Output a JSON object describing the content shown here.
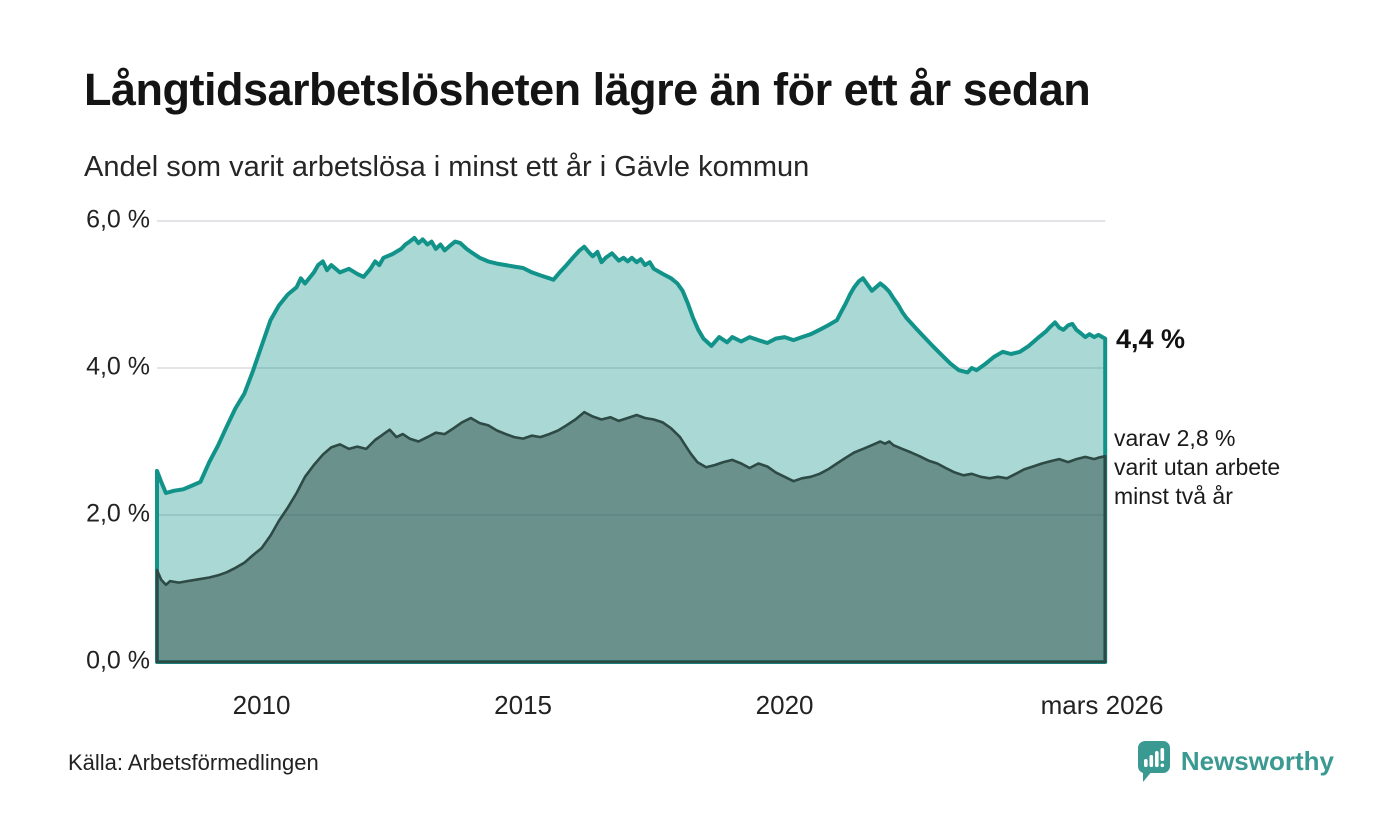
{
  "header": {
    "title": "Långtidsarbetslösheten lägre än för ett år sedan",
    "subtitle": "Andel som varit arbetslösa i minst ett år i Gävle kommun"
  },
  "annotation": {
    "value_label": "4,4 %",
    "note_lines": [
      "varav 2,8 %",
      "varit utan arbete",
      "minst två år"
    ]
  },
  "footer": {
    "source_label": "Källa: Arbetsförmedlingen",
    "brand": "Newsworthy"
  },
  "colors": {
    "grid": "#e3e3e8",
    "teal_line": "#12938a",
    "teal_fill": "rgba(18,147,138,0.36)",
    "dark_line": "#2d4a45",
    "dark_fill": "rgba(45,74,69,0.5)",
    "brand_teal": "#3a9a92",
    "text": "#1a1a1a"
  },
  "chart_data": {
    "type": "area",
    "title": "Långtidsarbetslösheten lägre än för ett år sedan",
    "subtitle": "Andel som varit arbetslösa i minst ett år i Gävle kommun",
    "unit": "%",
    "x_domain": [
      "jan 2008",
      "mars 2026"
    ],
    "ylim": [
      0,
      6
    ],
    "grid": true,
    "legend_position": "none",
    "yticks": [
      {
        "value": 6,
        "label": "6,0 %"
      },
      {
        "value": 4,
        "label": "4,0 %"
      },
      {
        "value": 2,
        "label": "2,0 %"
      },
      {
        "value": 0,
        "label": "0,0 %"
      }
    ],
    "xticks": [
      {
        "year": 2010.0,
        "label": "2010"
      },
      {
        "year": 2015.0,
        "label": "2015"
      },
      {
        "year": 2020.0,
        "label": "2020"
      },
      {
        "year": 2026.07,
        "label": "mars 2026"
      }
    ],
    "end_labels": {
      "series_1": "4,4 %",
      "series_2": "2,8 %"
    },
    "series": [
      {
        "name": "Arbetslösa minst ett år",
        "latest_value": 4.4,
        "points": [
          [
            2008.0,
            2.6
          ],
          [
            2008.08,
            2.45
          ],
          [
            2008.17,
            2.3
          ],
          [
            2008.33,
            2.33
          ],
          [
            2008.5,
            2.35
          ],
          [
            2008.67,
            2.4
          ],
          [
            2008.83,
            2.45
          ],
          [
            2009.0,
            2.72
          ],
          [
            2009.17,
            2.95
          ],
          [
            2009.33,
            3.2
          ],
          [
            2009.5,
            3.45
          ],
          [
            2009.67,
            3.65
          ],
          [
            2009.83,
            3.95
          ],
          [
            2010.0,
            4.3
          ],
          [
            2010.17,
            4.65
          ],
          [
            2010.33,
            4.85
          ],
          [
            2010.5,
            5.0
          ],
          [
            2010.67,
            5.1
          ],
          [
            2010.75,
            5.22
          ],
          [
            2010.83,
            5.15
          ],
          [
            2011.0,
            5.3
          ],
          [
            2011.08,
            5.4
          ],
          [
            2011.17,
            5.45
          ],
          [
            2011.25,
            5.33
          ],
          [
            2011.33,
            5.4
          ],
          [
            2011.5,
            5.3
          ],
          [
            2011.67,
            5.35
          ],
          [
            2011.83,
            5.28
          ],
          [
            2011.95,
            5.24
          ],
          [
            2012.08,
            5.35
          ],
          [
            2012.17,
            5.45
          ],
          [
            2012.25,
            5.4
          ],
          [
            2012.33,
            5.5
          ],
          [
            2012.5,
            5.55
          ],
          [
            2012.67,
            5.62
          ],
          [
            2012.75,
            5.68
          ],
          [
            2012.83,
            5.72
          ],
          [
            2012.92,
            5.77
          ],
          [
            2013.0,
            5.7
          ],
          [
            2013.08,
            5.75
          ],
          [
            2013.17,
            5.68
          ],
          [
            2013.25,
            5.72
          ],
          [
            2013.33,
            5.62
          ],
          [
            2013.42,
            5.68
          ],
          [
            2013.5,
            5.6
          ],
          [
            2013.58,
            5.65
          ],
          [
            2013.7,
            5.72
          ],
          [
            2013.8,
            5.7
          ],
          [
            2013.92,
            5.62
          ],
          [
            2014.0,
            5.58
          ],
          [
            2014.17,
            5.5
          ],
          [
            2014.33,
            5.45
          ],
          [
            2014.5,
            5.42
          ],
          [
            2014.67,
            5.4
          ],
          [
            2014.83,
            5.38
          ],
          [
            2015.0,
            5.36
          ],
          [
            2015.17,
            5.3
          ],
          [
            2015.33,
            5.26
          ],
          [
            2015.5,
            5.22
          ],
          [
            2015.58,
            5.2
          ],
          [
            2015.7,
            5.3
          ],
          [
            2015.83,
            5.4
          ],
          [
            2015.95,
            5.5
          ],
          [
            2016.08,
            5.6
          ],
          [
            2016.17,
            5.65
          ],
          [
            2016.25,
            5.58
          ],
          [
            2016.33,
            5.52
          ],
          [
            2016.42,
            5.58
          ],
          [
            2016.5,
            5.44
          ],
          [
            2016.58,
            5.5
          ],
          [
            2016.7,
            5.56
          ],
          [
            2016.83,
            5.46
          ],
          [
            2016.92,
            5.5
          ],
          [
            2017.0,
            5.45
          ],
          [
            2017.08,
            5.5
          ],
          [
            2017.17,
            5.44
          ],
          [
            2017.25,
            5.48
          ],
          [
            2017.33,
            5.4
          ],
          [
            2017.42,
            5.44
          ],
          [
            2017.5,
            5.35
          ],
          [
            2017.67,
            5.28
          ],
          [
            2017.83,
            5.22
          ],
          [
            2017.95,
            5.15
          ],
          [
            2018.05,
            5.05
          ],
          [
            2018.15,
            4.88
          ],
          [
            2018.25,
            4.68
          ],
          [
            2018.35,
            4.52
          ],
          [
            2018.45,
            4.4
          ],
          [
            2018.6,
            4.3
          ],
          [
            2018.75,
            4.42
          ],
          [
            2018.9,
            4.35
          ],
          [
            2019.0,
            4.42
          ],
          [
            2019.17,
            4.36
          ],
          [
            2019.33,
            4.42
          ],
          [
            2019.5,
            4.38
          ],
          [
            2019.67,
            4.34
          ],
          [
            2019.83,
            4.4
          ],
          [
            2020.0,
            4.42
          ],
          [
            2020.17,
            4.38
          ],
          [
            2020.33,
            4.42
          ],
          [
            2020.5,
            4.46
          ],
          [
            2020.67,
            4.52
          ],
          [
            2020.83,
            4.58
          ],
          [
            2021.0,
            4.65
          ],
          [
            2021.08,
            4.76
          ],
          [
            2021.17,
            4.88
          ],
          [
            2021.25,
            5.0
          ],
          [
            2021.33,
            5.1
          ],
          [
            2021.42,
            5.18
          ],
          [
            2021.5,
            5.22
          ],
          [
            2021.58,
            5.14
          ],
          [
            2021.67,
            5.05
          ],
          [
            2021.75,
            5.1
          ],
          [
            2021.83,
            5.15
          ],
          [
            2021.92,
            5.1
          ],
          [
            2022.0,
            5.04
          ],
          [
            2022.08,
            4.95
          ],
          [
            2022.17,
            4.86
          ],
          [
            2022.25,
            4.76
          ],
          [
            2022.33,
            4.68
          ],
          [
            2022.5,
            4.55
          ],
          [
            2022.67,
            4.42
          ],
          [
            2022.83,
            4.3
          ],
          [
            2023.0,
            4.18
          ],
          [
            2023.17,
            4.06
          ],
          [
            2023.33,
            3.97
          ],
          [
            2023.5,
            3.94
          ],
          [
            2023.58,
            4.0
          ],
          [
            2023.67,
            3.97
          ],
          [
            2023.83,
            4.05
          ],
          [
            2024.0,
            4.15
          ],
          [
            2024.17,
            4.22
          ],
          [
            2024.33,
            4.19
          ],
          [
            2024.5,
            4.22
          ],
          [
            2024.67,
            4.3
          ],
          [
            2024.83,
            4.4
          ],
          [
            2025.0,
            4.5
          ],
          [
            2025.08,
            4.56
          ],
          [
            2025.17,
            4.62
          ],
          [
            2025.25,
            4.55
          ],
          [
            2025.33,
            4.52
          ],
          [
            2025.42,
            4.58
          ],
          [
            2025.5,
            4.6
          ],
          [
            2025.58,
            4.52
          ],
          [
            2025.67,
            4.47
          ],
          [
            2025.75,
            4.42
          ],
          [
            2025.83,
            4.46
          ],
          [
            2025.92,
            4.42
          ],
          [
            2026.0,
            4.45
          ],
          [
            2026.13,
            4.4
          ]
        ]
      },
      {
        "name": "Varav utan arbete minst två år",
        "latest_value": 2.8,
        "points": [
          [
            2008.0,
            1.25
          ],
          [
            2008.08,
            1.12
          ],
          [
            2008.17,
            1.05
          ],
          [
            2008.25,
            1.1
          ],
          [
            2008.42,
            1.08
          ],
          [
            2008.58,
            1.1
          ],
          [
            2008.75,
            1.12
          ],
          [
            2009.0,
            1.15
          ],
          [
            2009.17,
            1.18
          ],
          [
            2009.33,
            1.22
          ],
          [
            2009.5,
            1.28
          ],
          [
            2009.67,
            1.35
          ],
          [
            2009.83,
            1.45
          ],
          [
            2010.0,
            1.55
          ],
          [
            2010.17,
            1.72
          ],
          [
            2010.33,
            1.92
          ],
          [
            2010.5,
            2.1
          ],
          [
            2010.67,
            2.3
          ],
          [
            2010.83,
            2.52
          ],
          [
            2011.0,
            2.68
          ],
          [
            2011.17,
            2.82
          ],
          [
            2011.33,
            2.92
          ],
          [
            2011.5,
            2.96
          ],
          [
            2011.67,
            2.9
          ],
          [
            2011.83,
            2.93
          ],
          [
            2012.0,
            2.9
          ],
          [
            2012.17,
            3.02
          ],
          [
            2012.33,
            3.1
          ],
          [
            2012.45,
            3.16
          ],
          [
            2012.58,
            3.06
          ],
          [
            2012.7,
            3.1
          ],
          [
            2012.83,
            3.04
          ],
          [
            2013.0,
            3.0
          ],
          [
            2013.17,
            3.06
          ],
          [
            2013.33,
            3.12
          ],
          [
            2013.5,
            3.1
          ],
          [
            2013.67,
            3.18
          ],
          [
            2013.83,
            3.26
          ],
          [
            2014.0,
            3.32
          ],
          [
            2014.17,
            3.25
          ],
          [
            2014.33,
            3.22
          ],
          [
            2014.5,
            3.15
          ],
          [
            2014.67,
            3.1
          ],
          [
            2014.83,
            3.06
          ],
          [
            2015.0,
            3.04
          ],
          [
            2015.17,
            3.08
          ],
          [
            2015.33,
            3.06
          ],
          [
            2015.5,
            3.1
          ],
          [
            2015.67,
            3.15
          ],
          [
            2015.83,
            3.22
          ],
          [
            2016.0,
            3.3
          ],
          [
            2016.17,
            3.4
          ],
          [
            2016.33,
            3.34
          ],
          [
            2016.5,
            3.3
          ],
          [
            2016.67,
            3.33
          ],
          [
            2016.83,
            3.28
          ],
          [
            2017.0,
            3.32
          ],
          [
            2017.17,
            3.36
          ],
          [
            2017.33,
            3.32
          ],
          [
            2017.5,
            3.3
          ],
          [
            2017.67,
            3.26
          ],
          [
            2017.83,
            3.18
          ],
          [
            2018.0,
            3.06
          ],
          [
            2018.1,
            2.95
          ],
          [
            2018.2,
            2.84
          ],
          [
            2018.33,
            2.72
          ],
          [
            2018.5,
            2.65
          ],
          [
            2018.67,
            2.68
          ],
          [
            2018.83,
            2.72
          ],
          [
            2019.0,
            2.75
          ],
          [
            2019.17,
            2.7
          ],
          [
            2019.33,
            2.64
          ],
          [
            2019.5,
            2.7
          ],
          [
            2019.67,
            2.66
          ],
          [
            2019.83,
            2.58
          ],
          [
            2020.0,
            2.52
          ],
          [
            2020.17,
            2.46
          ],
          [
            2020.33,
            2.5
          ],
          [
            2020.5,
            2.52
          ],
          [
            2020.67,
            2.56
          ],
          [
            2020.83,
            2.62
          ],
          [
            2021.0,
            2.7
          ],
          [
            2021.17,
            2.78
          ],
          [
            2021.33,
            2.85
          ],
          [
            2021.5,
            2.9
          ],
          [
            2021.67,
            2.95
          ],
          [
            2021.83,
            3.0
          ],
          [
            2021.92,
            2.97
          ],
          [
            2022.0,
            3.0
          ],
          [
            2022.08,
            2.95
          ],
          [
            2022.25,
            2.9
          ],
          [
            2022.42,
            2.85
          ],
          [
            2022.58,
            2.8
          ],
          [
            2022.75,
            2.74
          ],
          [
            2022.92,
            2.7
          ],
          [
            2023.08,
            2.64
          ],
          [
            2023.25,
            2.58
          ],
          [
            2023.42,
            2.54
          ],
          [
            2023.58,
            2.56
          ],
          [
            2023.75,
            2.52
          ],
          [
            2023.92,
            2.5
          ],
          [
            2024.08,
            2.52
          ],
          [
            2024.25,
            2.5
          ],
          [
            2024.42,
            2.56
          ],
          [
            2024.58,
            2.62
          ],
          [
            2024.75,
            2.66
          ],
          [
            2024.92,
            2.7
          ],
          [
            2025.08,
            2.73
          ],
          [
            2025.25,
            2.76
          ],
          [
            2025.42,
            2.72
          ],
          [
            2025.58,
            2.76
          ],
          [
            2025.75,
            2.79
          ],
          [
            2025.92,
            2.76
          ],
          [
            2026.0,
            2.78
          ],
          [
            2026.13,
            2.8
          ]
        ]
      }
    ]
  }
}
